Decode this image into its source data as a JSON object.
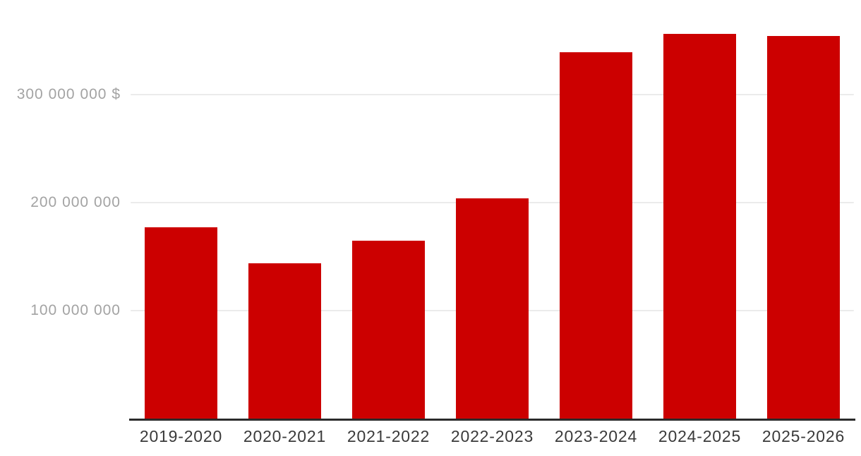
{
  "chart_data": {
    "type": "bar",
    "title": "",
    "xlabel": "",
    "ylabel": "",
    "categories": [
      "2019-2020",
      "2020-2021",
      "2021-2022",
      "2022-2023",
      "2023-2024",
      "2024-2025",
      "2025-2026"
    ],
    "values": [
      177000000,
      144000000,
      165000000,
      204000000,
      339000000,
      356000000,
      354000000
    ],
    "ylim": [
      0,
      388000000
    ],
    "yticks": [
      {
        "value": 100000000,
        "label": "100 000 000"
      },
      {
        "value": 200000000,
        "label": "200 000 000"
      },
      {
        "value": 300000000,
        "label": "300 000 000 $"
      }
    ],
    "grid": true,
    "legend": false,
    "bar_color": "#cc0000"
  },
  "colors": {
    "background": "#ffffff",
    "bar": "#cc0000",
    "gridline": "#ebebeb",
    "axis_line": "#2b2b2b",
    "ytick_text": "#a3a3a3",
    "xtick_text": "#3a3a3a"
  }
}
